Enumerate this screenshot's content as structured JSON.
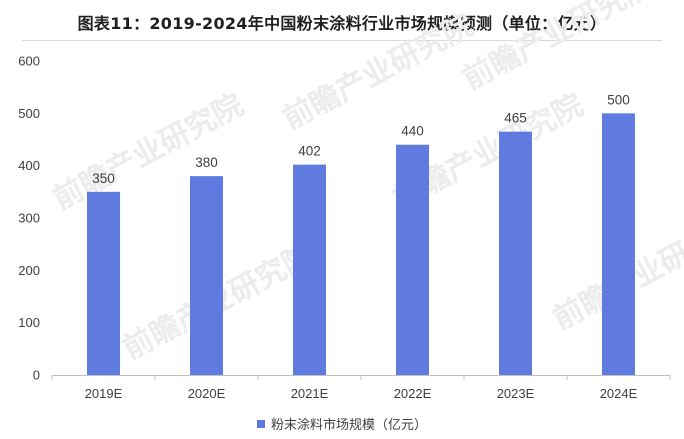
{
  "chart_data": {
    "type": "bar",
    "title": "图表11：2019-2024年中国粉末涂料行业市场规模预测（单位：亿元）",
    "categories": [
      "2019E",
      "2020E",
      "2021E",
      "2022E",
      "2023E",
      "2024E"
    ],
    "series": [
      {
        "name": "粉末涂料市场规模（亿元）",
        "values": [
          350,
          380,
          402,
          440,
          465,
          500
        ],
        "color": "#5f7be0"
      }
    ],
    "ylim": [
      0,
      600
    ],
    "yticks": [
      0,
      100,
      200,
      300,
      400,
      500,
      600
    ],
    "grid": false,
    "legend_position": "bottom",
    "data_labels": [
      "350",
      "380",
      "402",
      "440",
      "465",
      "500"
    ]
  },
  "watermark": "前瞻产业研究院"
}
